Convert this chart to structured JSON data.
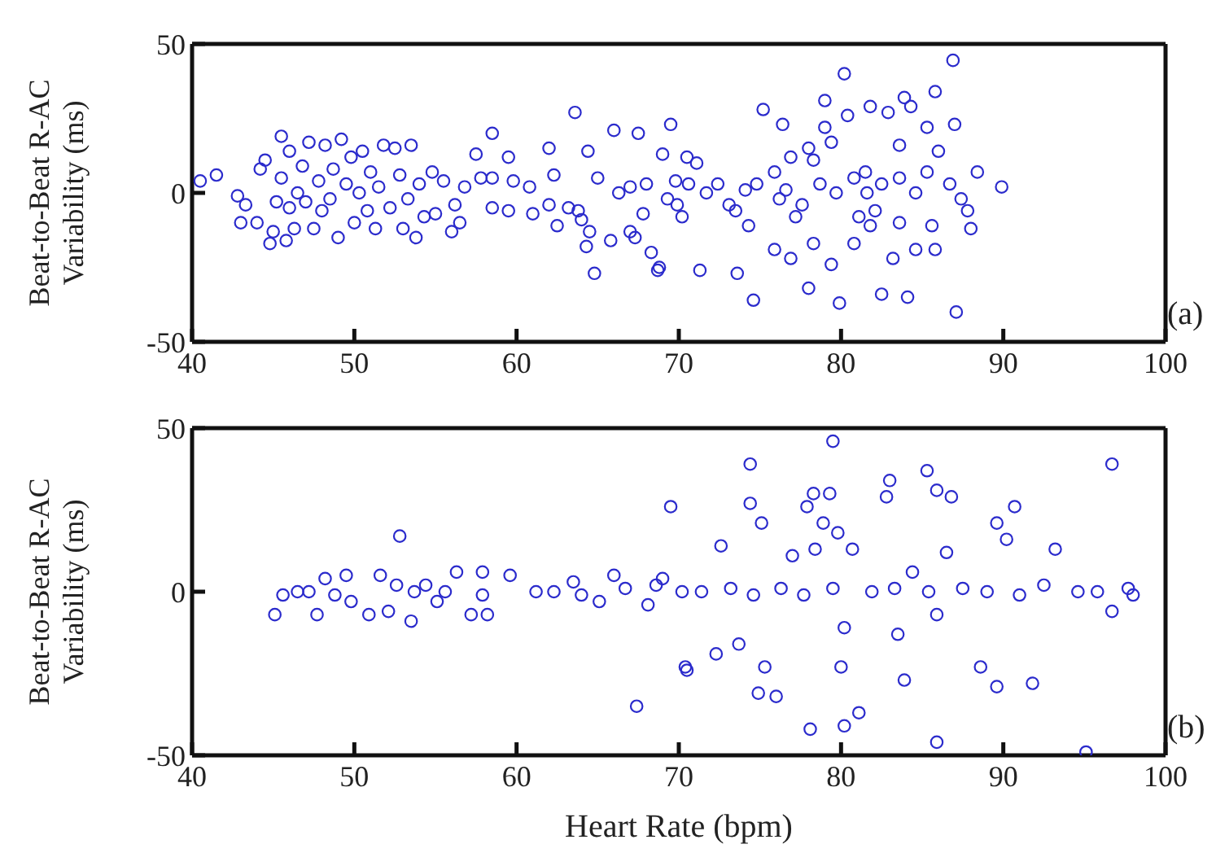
{
  "chart_data": [
    {
      "type": "scatter",
      "ylabel": "Beat-to-Beat R-AC Variability (ms)",
      "annotations": [
        "(a)"
      ],
      "xlim": [
        40,
        100
      ],
      "xticks": [
        40,
        50,
        60,
        70,
        80,
        90,
        100
      ],
      "ylim": [
        -50,
        50
      ],
      "yticks": [
        -50,
        0,
        50
      ],
      "marker": "circle",
      "grid": false,
      "legend": false,
      "series": [
        {
          "color": "#2b2bcc",
          "x": [
            40.5,
            41.5,
            42.8,
            43,
            43.3,
            44,
            44.2,
            44.5,
            44.8,
            45,
            45.2,
            45.5,
            45.5,
            45.8,
            46,
            46,
            46.3,
            46.5,
            46.8,
            47,
            47.2,
            47.5,
            47.8,
            48,
            48.2,
            48.5,
            48.7,
            49,
            49.2,
            49.5,
            49.8,
            50,
            50.3,
            50.5,
            50.8,
            51,
            51.3,
            51.5,
            51.8,
            52.2,
            52.5,
            52.8,
            53,
            53.3,
            53.5,
            53.8,
            54,
            54.3,
            54.8,
            55,
            55.5,
            56,
            56.2,
            56.5,
            56.8,
            57.5,
            57.8,
            58.5,
            58.5,
            58.5,
            59.5,
            59.5,
            59.8,
            60.8,
            61,
            62,
            62,
            62.3,
            62.5,
            63.2,
            63.6,
            63.8,
            64,
            64.3,
            64.4,
            64.5,
            64.8,
            65,
            65.8,
            66,
            66.3,
            67,
            67,
            67.3,
            67.5,
            67.8,
            68,
            68.3,
            68.8,
            69,
            69.3,
            69.5,
            69.8,
            70.2,
            70.5,
            75.2,
            86.9,
            80.2,
            79,
            83.9,
            85.8,
            87,
            76.4,
            89.9,
            88.4,
            88,
            87.1,
            79.9,
            74.6,
            73.6,
            78,
            82.5,
            84.1,
            71.3,
            68.7,
            71.1,
            72.4,
            73.1,
            74.3,
            75.9,
            76.9,
            78.3,
            79.4,
            80.8,
            81.8,
            83.2,
            84.6,
            85.8,
            86,
            85.3,
            84.3,
            82.9,
            81.8,
            80.4,
            79,
            78,
            76.9,
            75.9,
            74.8,
            76.2,
            77.6,
            78.7,
            79.7,
            80.8,
            81.5,
            82.5,
            83.6,
            84.6,
            85.3,
            86.7,
            87.4,
            87.8,
            82.1,
            81.1,
            77.2,
            73.5,
            71.7,
            69.9,
            85.6,
            83.6,
            78.3,
            83.6,
            79.4,
            70.6,
            74.1,
            76.6,
            81.6
          ],
          "values": [
            4,
            6,
            -1,
            -10,
            -4,
            -10,
            8,
            11,
            -17,
            -13,
            -3,
            5,
            19,
            -16,
            -5,
            14,
            -12,
            0,
            9,
            -3,
            17,
            -12,
            4,
            -6,
            16,
            -2,
            8,
            -15,
            18,
            3,
            12,
            -10,
            0,
            14,
            -6,
            7,
            -12,
            2,
            16,
            -5,
            15,
            6,
            -12,
            -2,
            16,
            -15,
            3,
            -8,
            7,
            -7,
            4,
            -13,
            -4,
            -10,
            2,
            13,
            5,
            20,
            5,
            -5,
            -6,
            12,
            4,
            2,
            -7,
            15,
            -4,
            6,
            -11,
            -5,
            27,
            -6,
            -9,
            -18,
            14,
            -13,
            -27,
            5,
            -16,
            21,
            0,
            2,
            -13,
            -15,
            20,
            -7,
            3,
            -20,
            -25,
            13,
            -2,
            23,
            4,
            -8,
            12,
            28,
            44.5,
            40,
            31,
            32,
            34,
            23,
            23,
            2,
            7,
            -12,
            -40,
            -37,
            -36,
            -27,
            -32,
            -34,
            -35,
            -26,
            -26,
            10,
            3,
            -4,
            -11,
            -19,
            -22,
            -17,
            -24,
            -17,
            -11,
            -22,
            -19,
            -19,
            14,
            22,
            29,
            27,
            29,
            26,
            22,
            15,
            12,
            7,
            3,
            -2,
            -4,
            3,
            0,
            5,
            7,
            3,
            5,
            0,
            7,
            3,
            -2,
            -6,
            -6,
            -8,
            -8,
            -6,
            0,
            -4,
            -11,
            -10,
            11,
            16,
            17,
            3,
            1,
            1,
            0
          ]
        }
      ]
    },
    {
      "type": "scatter",
      "xlabel": "Heart Rate (bpm)",
      "ylabel": "Beat-to-Beat R-AC Variability (ms)",
      "annotations": [
        "(b)"
      ],
      "xlim": [
        40,
        100
      ],
      "xticks": [
        40,
        50,
        60,
        70,
        80,
        90,
        100
      ],
      "ylim": [
        -50,
        50
      ],
      "yticks": [
        -50,
        0,
        50
      ],
      "marker": "circle",
      "grid": false,
      "legend": false,
      "series": [
        {
          "color": "#2b2bcc",
          "x": [
            45.1,
            45.6,
            46.5,
            47.2,
            47.7,
            48.2,
            48.8,
            49.5,
            49.8,
            50.9,
            51.6,
            52.1,
            52.8,
            52.6,
            53.5,
            53.7,
            54.4,
            55.1,
            55.6,
            56.3,
            57.2,
            57.9,
            58.2,
            57.9,
            59.6,
            61.2,
            62.3,
            63.5,
            64,
            65.1,
            66,
            66.7,
            67.4,
            68.1,
            69,
            69.5,
            70.5,
            70.2,
            70.4,
            72.6,
            72.3,
            73.7,
            74.4,
            74.4,
            75.1,
            75.3,
            74.9,
            76,
            77,
            78.1,
            77.9,
            78.3,
            79.3,
            79.5,
            78.4,
            78.9,
            79.8,
            80.7,
            80,
            80.2,
            80.2,
            81.1,
            83,
            82.8,
            83.5,
            83.9,
            84.4,
            85.3,
            85.9,
            85.9,
            86.8,
            86.5,
            85.9,
            88.6,
            89.6,
            89.6,
            90.7,
            90.2,
            91.8,
            93.2,
            95.1,
            96.7,
            97.7,
            96.7,
            95.8,
            94.6,
            92.5,
            91,
            89,
            87.5,
            85.4,
            83.3,
            81.9,
            79.5,
            77.7,
            76.3,
            74.6,
            73.2,
            71.4,
            98,
            68.6
          ],
          "values": [
            -7,
            -1,
            0,
            0,
            -7,
            4,
            -1,
            5,
            -3,
            -7,
            5,
            -6,
            17,
            2,
            -9,
            0,
            2,
            -3,
            0,
            6,
            -7,
            6,
            -7,
            -1,
            5,
            0,
            0,
            3,
            -1,
            -3,
            5,
            1,
            -35,
            -4,
            4,
            26,
            -24,
            0,
            -23,
            14,
            -19,
            -16,
            39,
            27,
            21,
            -23,
            -31,
            -32,
            11,
            -42,
            26,
            30,
            30,
            46,
            13,
            21,
            18,
            13,
            -23,
            -11,
            -41,
            -37,
            34,
            29,
            -13,
            -27,
            6,
            37,
            31,
            -46,
            29,
            12,
            -7,
            -23,
            21,
            -29,
            26,
            16,
            -28,
            13,
            -49,
            39,
            1,
            -6,
            0,
            0,
            2,
            -1,
            0,
            1,
            0,
            1,
            0,
            1,
            -1,
            1,
            -1,
            1,
            0,
            -1,
            2
          ]
        }
      ]
    }
  ]
}
